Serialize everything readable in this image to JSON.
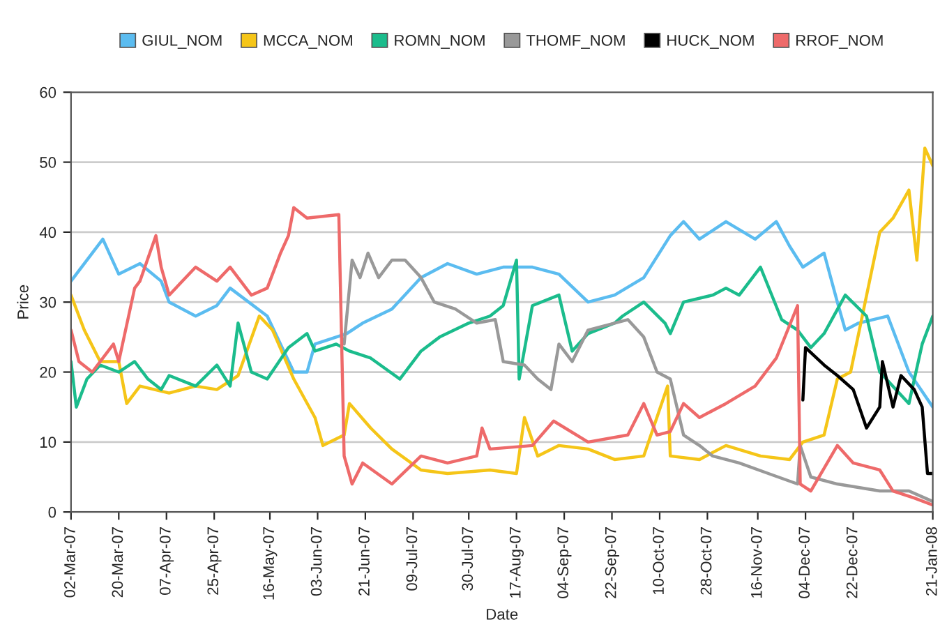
{
  "chart_data": {
    "type": "line",
    "xlabel": "Date",
    "ylabel": "Price",
    "xlim": [
      "2007-03-02",
      "2008-01-21"
    ],
    "ylim": [
      0,
      60
    ],
    "yticks": [
      0,
      10,
      20,
      30,
      40,
      50,
      60
    ],
    "xticks": [
      {
        "value": "2007-03-02",
        "label": "02-Mar-07"
      },
      {
        "value": "2007-03-20",
        "label": "20-Mar-07"
      },
      {
        "value": "2007-04-07",
        "label": "07-Apr-07"
      },
      {
        "value": "2007-04-25",
        "label": "25-Apr-07"
      },
      {
        "value": "2007-05-16",
        "label": "16-May-07"
      },
      {
        "value": "2007-06-03",
        "label": "03-Jun-07"
      },
      {
        "value": "2007-06-21",
        "label": "21-Jun-07"
      },
      {
        "value": "2007-07-09",
        "label": "09-Jul-07"
      },
      {
        "value": "2007-07-30",
        "label": "30-Jul-07"
      },
      {
        "value": "2007-08-17",
        "label": "17-Aug-07"
      },
      {
        "value": "2007-09-04",
        "label": "04-Sep-07"
      },
      {
        "value": "2007-09-22",
        "label": "22-Sep-07"
      },
      {
        "value": "2007-10-10",
        "label": "10-Oct-07"
      },
      {
        "value": "2007-10-28",
        "label": "28-Oct-07"
      },
      {
        "value": "2007-11-16",
        "label": "16-Nov-07"
      },
      {
        "value": "2007-12-04",
        "label": "04-Dec-07"
      },
      {
        "value": "2007-12-22",
        "label": "22-Dec-07"
      },
      {
        "value": "2008-01-21",
        "label": "21-Jan-08"
      }
    ],
    "grid": "y",
    "legend": "top",
    "marker": "none",
    "line_style": "solid",
    "series": [
      {
        "name": "GIUL_NOM",
        "color": "#5bbcf0",
        "x": [
          "2007-03-02",
          "2007-03-14",
          "2007-03-20",
          "2007-03-28",
          "2007-04-05",
          "2007-04-08",
          "2007-04-18",
          "2007-04-26",
          "2007-05-01",
          "2007-05-15",
          "2007-05-20",
          "2007-05-25",
          "2007-05-30",
          "2007-06-02",
          "2007-06-14",
          "2007-06-20",
          "2007-07-01",
          "2007-07-12",
          "2007-07-22",
          "2007-08-02",
          "2007-08-12",
          "2007-08-23",
          "2007-09-02",
          "2007-09-13",
          "2007-09-23",
          "2007-10-04",
          "2007-10-14",
          "2007-10-19",
          "2007-10-25",
          "2007-11-04",
          "2007-11-15",
          "2007-11-23",
          "2007-11-28",
          "2007-12-03",
          "2007-12-11",
          "2007-12-16",
          "2007-12-19",
          "2007-12-24",
          "2008-01-04",
          "2008-01-12",
          "2008-01-21"
        ],
        "values": [
          33,
          39,
          34,
          35.5,
          33,
          30,
          28,
          29.5,
          32,
          28,
          24,
          20,
          20,
          24,
          25.5,
          27,
          29,
          33.5,
          35.5,
          34,
          35,
          35,
          34,
          30,
          31,
          33.5,
          39.5,
          41.5,
          39,
          41.5,
          39,
          41.5,
          38,
          35,
          37,
          30,
          26,
          27,
          28,
          20,
          15
        ]
      },
      {
        "name": "MCCA_NOM",
        "color": "#f5c518",
        "x": [
          "2007-03-02",
          "2007-03-07",
          "2007-03-13",
          "2007-03-20",
          "2007-03-23",
          "2007-03-28",
          "2007-04-08",
          "2007-04-18",
          "2007-04-26",
          "2007-05-04",
          "2007-05-12",
          "2007-05-17",
          "2007-05-25",
          "2007-06-02",
          "2007-06-05",
          "2007-06-13",
          "2007-06-15",
          "2007-06-23",
          "2007-07-01",
          "2007-07-12",
          "2007-07-22",
          "2007-08-07",
          "2007-08-17",
          "2007-08-20",
          "2007-08-25",
          "2007-09-02",
          "2007-09-13",
          "2007-09-23",
          "2007-10-04",
          "2007-10-13",
          "2007-10-14",
          "2007-10-25",
          "2007-11-04",
          "2007-11-17",
          "2007-11-28",
          "2007-12-03",
          "2007-12-11",
          "2007-12-16",
          "2007-12-21",
          "2008-01-01",
          "2008-01-06",
          "2008-01-12",
          "2008-01-15",
          "2008-01-18",
          "2008-01-21"
        ],
        "values": [
          31,
          26,
          21.5,
          21.5,
          15.5,
          18,
          17,
          18,
          17.5,
          19.5,
          28,
          26,
          19,
          13.5,
          9.5,
          11,
          15.5,
          12,
          9,
          6,
          5.5,
          6,
          5.5,
          13.5,
          8,
          9.5,
          9,
          7.5,
          8,
          18,
          8,
          7.5,
          9.5,
          8,
          7.5,
          10,
          11,
          19,
          20,
          40,
          42,
          46,
          36,
          52,
          49.5
        ]
      },
      {
        "name": "ROMN_NOM",
        "color": "#1bbc8c",
        "x": [
          "2007-03-02",
          "2007-03-04",
          "2007-03-08",
          "2007-03-13",
          "2007-03-20",
          "2007-03-26",
          "2007-03-31",
          "2007-04-05",
          "2007-04-08",
          "2007-04-18",
          "2007-04-26",
          "2007-05-01",
          "2007-05-04",
          "2007-05-09",
          "2007-05-15",
          "2007-05-23",
          "2007-05-30",
          "2007-06-02",
          "2007-06-10",
          "2007-06-15",
          "2007-06-23",
          "2007-07-04",
          "2007-07-12",
          "2007-07-19",
          "2007-07-30",
          "2007-08-07",
          "2007-08-12",
          "2007-08-17",
          "2007-08-18",
          "2007-08-23",
          "2007-09-02",
          "2007-09-07",
          "2007-09-13",
          "2007-09-23",
          "2007-09-26",
          "2007-10-04",
          "2007-10-12",
          "2007-10-14",
          "2007-10-19",
          "2007-10-30",
          "2007-11-04",
          "2007-11-09",
          "2007-11-17",
          "2007-11-25",
          "2007-12-01",
          "2007-12-06",
          "2007-12-11",
          "2007-12-19",
          "2007-12-27",
          "2008-01-01",
          "2008-01-12",
          "2008-01-17",
          "2008-01-21"
        ],
        "values": [
          21.5,
          15,
          19,
          21,
          20,
          21.5,
          19,
          17.5,
          19.5,
          18,
          21,
          18,
          27,
          20,
          19,
          23.5,
          25.5,
          23,
          24,
          23,
          22,
          19,
          23,
          25,
          27,
          28,
          29.5,
          36,
          19,
          29.5,
          31,
          23,
          25.5,
          27,
          28,
          30,
          27,
          25.5,
          30,
          31,
          32,
          31,
          35,
          27.5,
          26,
          23.5,
          25.5,
          31,
          28,
          20,
          15.5,
          24,
          28
        ]
      },
      {
        "name": "THOMF_NOM",
        "color": "#999999",
        "x": [
          "2007-06-13",
          "2007-06-16",
          "2007-06-19",
          "2007-06-22",
          "2007-06-26",
          "2007-07-01",
          "2007-07-06",
          "2007-07-12",
          "2007-07-17",
          "2007-07-25",
          "2007-08-02",
          "2007-08-09",
          "2007-08-12",
          "2007-08-20",
          "2007-08-25",
          "2007-08-30",
          "2007-09-02",
          "2007-09-07",
          "2007-09-13",
          "2007-09-23",
          "2007-09-28",
          "2007-10-04",
          "2007-10-09",
          "2007-10-14",
          "2007-10-19",
          "2007-10-25",
          "2007-10-30",
          "2007-11-09",
          "2007-11-20",
          "2007-12-01",
          "2007-12-02",
          "2007-12-06",
          "2007-12-16",
          "2008-01-01",
          "2008-01-12",
          "2008-01-21"
        ],
        "values": [
          24,
          36,
          33.5,
          37,
          33.5,
          36,
          36,
          33.5,
          30,
          29,
          27,
          27.5,
          21.5,
          21,
          19,
          17.5,
          24,
          21.5,
          26,
          27,
          27.5,
          25,
          20,
          19,
          11,
          9.5,
          8,
          7,
          5.5,
          4,
          9.5,
          5,
          4,
          3,
          3,
          1.5
        ]
      },
      {
        "name": "HUCK_NOM",
        "color": "#000000",
        "x": [
          "2007-12-03",
          "2007-12-04",
          "2007-12-11",
          "2007-12-16",
          "2007-12-22",
          "2007-12-27",
          "2008-01-01",
          "2008-01-02",
          "2008-01-06",
          "2008-01-09",
          "2008-01-14",
          "2008-01-17",
          "2008-01-19",
          "2008-01-21"
        ],
        "values": [
          16,
          23.5,
          21,
          19.5,
          17.5,
          12,
          15,
          21.5,
          15,
          19.5,
          17.5,
          15,
          5.5,
          5.5
        ]
      },
      {
        "name": "RROF_NOM",
        "color": "#ee6a6a",
        "x": [
          "2007-03-02",
          "2007-03-05",
          "2007-03-10",
          "2007-03-18",
          "2007-03-20",
          "2007-03-26",
          "2007-03-28",
          "2007-04-03",
          "2007-04-05",
          "2007-04-08",
          "2007-04-18",
          "2007-04-26",
          "2007-05-01",
          "2007-05-09",
          "2007-05-15",
          "2007-05-20",
          "2007-05-23",
          "2007-05-25",
          "2007-05-30",
          "2007-06-11",
          "2007-06-13",
          "2007-06-16",
          "2007-06-20",
          "2007-07-01",
          "2007-07-12",
          "2007-07-22",
          "2007-08-02",
          "2007-08-04",
          "2007-08-07",
          "2007-08-23",
          "2007-08-31",
          "2007-09-13",
          "2007-09-28",
          "2007-10-04",
          "2007-10-09",
          "2007-10-14",
          "2007-10-19",
          "2007-10-25",
          "2007-11-04",
          "2007-11-15",
          "2007-11-23",
          "2007-12-01",
          "2007-12-02",
          "2007-12-06",
          "2007-12-16",
          "2007-12-22",
          "2008-01-01",
          "2008-01-06",
          "2008-01-14",
          "2008-01-21"
        ],
        "values": [
          26,
          21.5,
          20,
          24,
          21.5,
          32,
          33,
          39.5,
          35,
          31,
          35,
          33,
          35,
          31,
          32,
          37,
          39.5,
          43.5,
          42,
          42.5,
          8,
          4,
          7,
          4,
          8,
          7,
          8,
          12,
          9,
          9.5,
          13,
          10,
          11,
          15.5,
          11,
          11.5,
          15.5,
          13.5,
          15.5,
          18,
          22,
          29.5,
          4,
          3,
          9.5,
          7,
          6,
          3,
          2,
          1
        ]
      }
    ]
  }
}
